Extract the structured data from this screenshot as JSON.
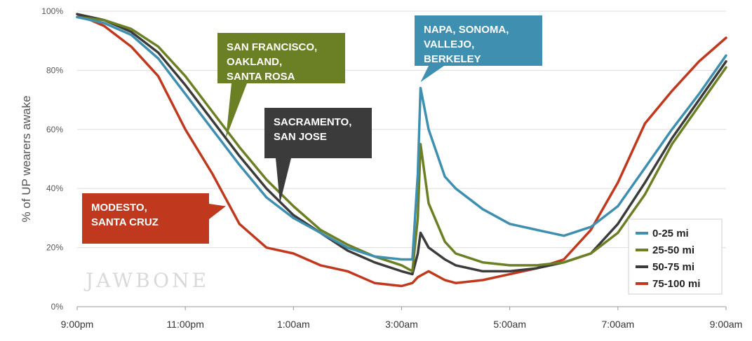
{
  "chart_data": {
    "type": "line",
    "title": "",
    "xlabel": "",
    "ylabel": "% of UP wearers awake",
    "x_ticks": [
      "9:00pm",
      "11:00pm",
      "1:00am",
      "3:00am",
      "5:00am",
      "7:00am",
      "9:00am"
    ],
    "x_tick_hours": [
      0,
      2,
      4,
      6,
      8,
      10,
      12
    ],
    "xlim": [
      0,
      12
    ],
    "y_ticks": [
      "0%",
      "20%",
      "40%",
      "60%",
      "80%",
      "100%"
    ],
    "y_tick_values": [
      0,
      20,
      40,
      60,
      80,
      100
    ],
    "ylim": [
      0,
      100
    ],
    "grid": "horizontal",
    "legend_position": "bottom-right",
    "series": [
      {
        "name": "0-25 mi",
        "color": "#3f8fb0",
        "points": [
          [
            0,
            98
          ],
          [
            0.5,
            96
          ],
          [
            1,
            92
          ],
          [
            1.5,
            84
          ],
          [
            2,
            72
          ],
          [
            2.5,
            60
          ],
          [
            3,
            48
          ],
          [
            3.5,
            37
          ],
          [
            4,
            30
          ],
          [
            4.5,
            25
          ],
          [
            5,
            20
          ],
          [
            5.5,
            17
          ],
          [
            6,
            16
          ],
          [
            6.2,
            16
          ],
          [
            6.3,
            45
          ],
          [
            6.35,
            74
          ],
          [
            6.5,
            60
          ],
          [
            6.8,
            44
          ],
          [
            7,
            40
          ],
          [
            7.5,
            33
          ],
          [
            8,
            28
          ],
          [
            8.5,
            26
          ],
          [
            9,
            24
          ],
          [
            9.5,
            27
          ],
          [
            10,
            34
          ],
          [
            10.5,
            47
          ],
          [
            11,
            60
          ],
          [
            11.5,
            72
          ],
          [
            12,
            85
          ]
        ]
      },
      {
        "name": "25-50 mi",
        "color": "#6b7f25",
        "points": [
          [
            0,
            98
          ],
          [
            0.5,
            97
          ],
          [
            1,
            94
          ],
          [
            1.5,
            88
          ],
          [
            2,
            78
          ],
          [
            2.5,
            66
          ],
          [
            3,
            54
          ],
          [
            3.5,
            43
          ],
          [
            4,
            34
          ],
          [
            4.5,
            26
          ],
          [
            5,
            21
          ],
          [
            5.5,
            17
          ],
          [
            6,
            14
          ],
          [
            6.2,
            12
          ],
          [
            6.3,
            30
          ],
          [
            6.35,
            55
          ],
          [
            6.5,
            35
          ],
          [
            6.8,
            22
          ],
          [
            7,
            18
          ],
          [
            7.5,
            15
          ],
          [
            8,
            14
          ],
          [
            8.5,
            14
          ],
          [
            9,
            15
          ],
          [
            9.5,
            18
          ],
          [
            10,
            25
          ],
          [
            10.5,
            38
          ],
          [
            11,
            55
          ],
          [
            11.5,
            68
          ],
          [
            12,
            81
          ]
        ]
      },
      {
        "name": "50-75 mi",
        "color": "#3b3b3b",
        "points": [
          [
            0,
            99
          ],
          [
            0.5,
            97
          ],
          [
            1,
            93
          ],
          [
            1.5,
            86
          ],
          [
            2,
            75
          ],
          [
            2.5,
            63
          ],
          [
            3,
            51
          ],
          [
            3.5,
            40
          ],
          [
            4,
            31
          ],
          [
            4.5,
            25
          ],
          [
            5,
            19
          ],
          [
            5.5,
            15
          ],
          [
            6,
            12
          ],
          [
            6.2,
            11
          ],
          [
            6.3,
            18
          ],
          [
            6.35,
            25
          ],
          [
            6.5,
            20
          ],
          [
            6.8,
            16
          ],
          [
            7,
            14
          ],
          [
            7.5,
            12
          ],
          [
            8,
            12
          ],
          [
            8.5,
            13
          ],
          [
            9,
            15
          ],
          [
            9.5,
            18
          ],
          [
            10,
            28
          ],
          [
            10.5,
            42
          ],
          [
            11,
            57
          ],
          [
            11.5,
            70
          ],
          [
            12,
            83
          ]
        ]
      },
      {
        "name": "75-100 mi",
        "color": "#c0391e",
        "points": [
          [
            0,
            99
          ],
          [
            0.5,
            95
          ],
          [
            1,
            88
          ],
          [
            1.5,
            78
          ],
          [
            2,
            60
          ],
          [
            2.5,
            45
          ],
          [
            3,
            28
          ],
          [
            3.5,
            20
          ],
          [
            4,
            18
          ],
          [
            4.5,
            14
          ],
          [
            5,
            12
          ],
          [
            5.5,
            8
          ],
          [
            6,
            7
          ],
          [
            6.2,
            8
          ],
          [
            6.3,
            10
          ],
          [
            6.5,
            12
          ],
          [
            6.8,
            9
          ],
          [
            7,
            8
          ],
          [
            7.5,
            9
          ],
          [
            8,
            11
          ],
          [
            8.5,
            13
          ],
          [
            9,
            16
          ],
          [
            9.5,
            26
          ],
          [
            10,
            42
          ],
          [
            10.5,
            62
          ],
          [
            11,
            73
          ],
          [
            11.5,
            83
          ],
          [
            12,
            91
          ]
        ]
      }
    ],
    "annotations": [
      {
        "lines": [
          "SAN FRANCISCO,",
          "OAKLAND,",
          "SANTA ROSA"
        ],
        "color": "#6b7f25",
        "target_x": 2.75,
        "target_y": 57
      },
      {
        "lines": [
          "SACRAMENTO,",
          "SAN JOSE"
        ],
        "color": "#3b3b3b",
        "target_x": 3.75,
        "target_y": 35
      },
      {
        "lines": [
          "NAPA, SONOMA,",
          "VALLEJO,",
          "BERKELEY"
        ],
        "color": "#3f8fb0",
        "target_x": 6.35,
        "target_y": 76
      },
      {
        "lines": [
          "MODESTO,",
          "SANTA CRUZ"
        ],
        "color": "#c0391e",
        "target_x": 2.75,
        "target_y": 34
      }
    ],
    "watermark": "JAWBONE"
  }
}
